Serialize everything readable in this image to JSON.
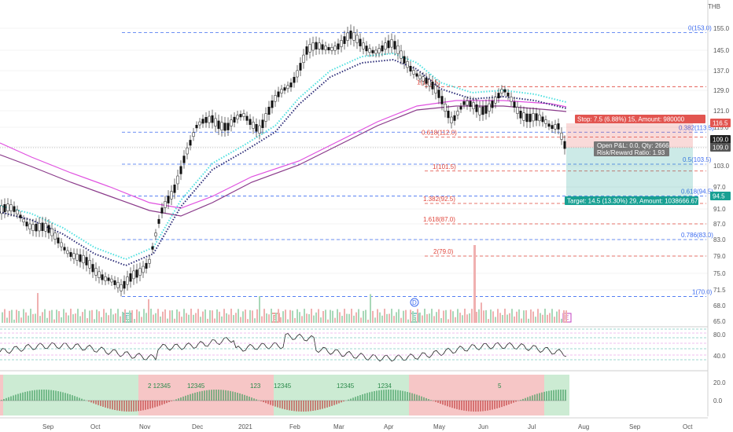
{
  "currency": "THB",
  "price_axis": [
    "155.0",
    "145.0",
    "137.0",
    "129.0",
    "121.0",
    "115.0",
    "109.0",
    "103.0",
    "97.0",
    "91.0",
    "87.0",
    "83.0",
    "79.0",
    "75.0",
    "71.5",
    "68.0",
    "65.0"
  ],
  "time_axis": [
    "Sep",
    "Oct",
    "Nov",
    "Dec",
    "2021",
    "Feb",
    "Mar",
    "Apr",
    "May",
    "Jun",
    "Jul",
    "Aug",
    "Sep",
    "Oct"
  ],
  "fib_levels": [
    {
      "text": "0(153.0)",
      "color": "#3d6cf0"
    },
    {
      "text": "1(130.5)",
      "color": "#e0473d"
    },
    {
      "text": "0.382(113.5)",
      "color": "#3d6cf0"
    },
    {
      "text": "0.618(112.0)",
      "color": "#e0473d"
    },
    {
      "text": "0.5(103.5)",
      "color": "#3d6cf0"
    },
    {
      "text": "1(101.5)",
      "color": "#e0473d"
    },
    {
      "text": "0.618(94.5)",
      "color": "#3d6cf0"
    },
    {
      "text": "1.382(92.5)",
      "color": "#e0473d"
    },
    {
      "text": "1.618(87.0)",
      "color": "#e0473d"
    },
    {
      "text": "0.786(83.0)",
      "color": "#3d6cf0"
    },
    {
      "text": "2(79.0)",
      "color": "#e0473d"
    },
    {
      "text": "1(70.0)",
      "color": "#3d6cf0"
    }
  ],
  "position": {
    "stop_label": "Stop: 7.5 (6.88%) 15, Amount: 980000",
    "target_label": "Target: 14.5 (13.30%) 29, Amount: 1038666.67",
    "pnl_label": "Open P&L: 0.0, Qty: 2666",
    "rr_label": "Risk/Reward Ratio: 1.93",
    "stop_price": "116.5",
    "entry_price_1": "109.0",
    "entry_price_2": "109.0",
    "target_price": "94.5"
  },
  "events": [
    "E",
    "E",
    "E",
    "D",
    "E"
  ],
  "rsi_axis": [
    "80.0",
    "40.0"
  ],
  "osc_axis": [
    "20.0",
    "0.0"
  ],
  "osc_labels": [
    "2 12345",
    "12345",
    "123",
    "12345",
    "12345",
    "1234",
    "5"
  ],
  "colors": {
    "stop": "#e25550",
    "target": "#19a093",
    "cyan": "#4fe0e0",
    "navy": "#30307a",
    "magenta": "#e050e0",
    "purple": "#8a3a8a"
  }
}
